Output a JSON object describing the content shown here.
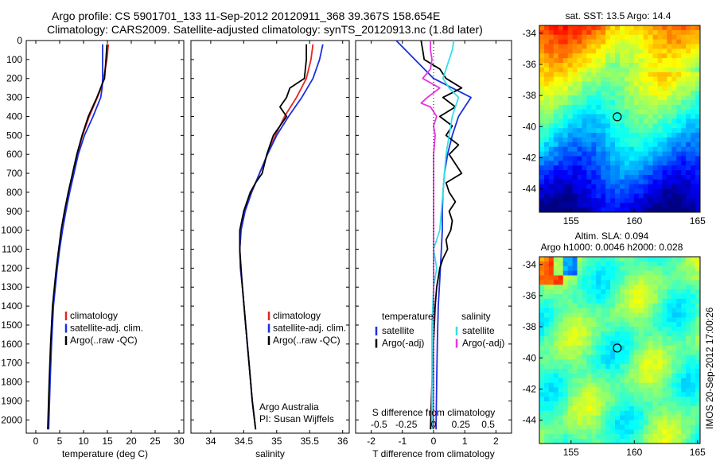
{
  "header": {
    "line1": "Argo profile: CS 5901701_133 11-Sep-2012 20120911_368 39.367S 158.654E",
    "line2": "Climatology: CARS2009. Satellite-adjusted climatology: synTS_20120913.nc (1.8d later)"
  },
  "side_stamp": "IMOS 20-Sep-2012 17:00:26",
  "colors": {
    "red": "#e8241f",
    "blue": "#1b2fe0",
    "black": "#000000",
    "cyan": "#33e0e6",
    "magenta": "#e834e0"
  },
  "depth_ticks": [
    0,
    100,
    200,
    300,
    400,
    500,
    600,
    700,
    800,
    900,
    1000,
    1100,
    1200,
    1300,
    1400,
    1500,
    1600,
    1700,
    1800,
    1900,
    2000
  ],
  "chart_data": [
    {
      "type": "line",
      "id": "temperature",
      "xlabel": "temperature (deg C)",
      "ylabel": "",
      "xlim": [
        -2,
        31
      ],
      "ylim": [
        2070,
        0
      ],
      "xticks": [
        0,
        5,
        10,
        15,
        20,
        25,
        30
      ],
      "legend": [
        "climatology",
        "satellite-adj. clim.",
        "Argo(..raw -QC)"
      ],
      "series": [
        {
          "name": "climatology",
          "color": "red",
          "depth": [
            20,
            100,
            200,
            250,
            300,
            400,
            500,
            600,
            700,
            800,
            900,
            1000,
            1100,
            1200,
            1300,
            1400,
            1600,
            1800,
            2050
          ],
          "values": [
            15.2,
            14.9,
            14.2,
            13.7,
            12.9,
            11.2,
            9.8,
            8.7,
            7.8,
            6.9,
            6.1,
            5.4,
            4.9,
            4.4,
            4.0,
            3.6,
            3.2,
            2.9,
            2.6
          ]
        },
        {
          "name": "satellite-adj. clim.",
          "color": "blue",
          "depth": [
            20,
            100,
            200,
            250,
            300,
            400,
            500,
            600,
            700,
            800,
            900,
            1000,
            1100,
            1200,
            1300,
            1400,
            1600,
            1800,
            2050
          ],
          "values": [
            14.0,
            14.0,
            14.0,
            13.9,
            13.6,
            12.0,
            10.2,
            8.9,
            8.0,
            7.1,
            6.3,
            5.6,
            5.0,
            4.5,
            4.1,
            3.7,
            3.3,
            3.0,
            2.7
          ]
        },
        {
          "name": "Argo(..raw -QC)",
          "color": "black",
          "depth": [
            20,
            100,
            200,
            230,
            300,
            400,
            500,
            600,
            700,
            800,
            900,
            1000,
            1100,
            1200,
            1300,
            1400,
            1600,
            1800,
            2050
          ],
          "values": [
            14.9,
            14.7,
            14.4,
            13.9,
            12.8,
            11.0,
            9.7,
            8.6,
            7.7,
            6.8,
            6.0,
            5.3,
            4.8,
            4.3,
            3.9,
            3.5,
            3.1,
            2.8,
            2.5
          ]
        }
      ]
    },
    {
      "type": "line",
      "id": "salinity",
      "xlabel": "salinity",
      "ylabel": "",
      "xlim": [
        33.7,
        36.1
      ],
      "ylim": [
        2070,
        0
      ],
      "xticks": [
        34,
        34.5,
        35,
        35.5,
        36
      ],
      "legend": [
        "climatology",
        "satellite-adj. clim.",
        "Argo(..raw -QC)"
      ],
      "annotation": [
        "Argo Australia",
        "PI: Susan Wijffels"
      ],
      "series": [
        {
          "name": "climatology",
          "color": "red",
          "depth": [
            20,
            100,
            200,
            300,
            400,
            500,
            600,
            700,
            800,
            900,
            1000,
            1100,
            1200,
            1300,
            1500,
            1700,
            1900,
            2050
          ],
          "values": [
            35.55,
            35.52,
            35.45,
            35.3,
            35.12,
            34.98,
            34.86,
            34.74,
            34.62,
            34.52,
            34.46,
            34.44,
            34.45,
            34.48,
            34.53,
            34.58,
            34.63,
            34.68
          ]
        },
        {
          "name": "satellite-adj. clim.",
          "color": "blue",
          "depth": [
            20,
            100,
            200,
            300,
            400,
            500,
            600,
            700,
            800,
            900,
            1000,
            1100,
            1200,
            1300,
            1500,
            1700,
            1900,
            2050
          ],
          "values": [
            35.7,
            35.65,
            35.55,
            35.38,
            35.18,
            35.0,
            34.86,
            34.74,
            34.62,
            34.52,
            34.46,
            34.44,
            34.45,
            34.48,
            34.53,
            34.58,
            34.63,
            34.68
          ]
        },
        {
          "name": "Argo(..raw -QC)",
          "color": "black",
          "depth": [
            20,
            100,
            200,
            250,
            300,
            350,
            400,
            500,
            600,
            700,
            750,
            800,
            900,
            1000,
            1100,
            1200,
            1300,
            1500,
            1700,
            1900,
            2050
          ],
          "values": [
            35.45,
            35.45,
            35.42,
            35.2,
            35.15,
            35.05,
            35.15,
            34.95,
            34.85,
            34.78,
            34.68,
            34.6,
            34.5,
            34.44,
            34.44,
            34.46,
            34.48,
            34.53,
            34.58,
            34.63,
            34.68
          ]
        }
      ]
    },
    {
      "type": "line",
      "id": "difference",
      "xlabel": "T difference from climatology",
      "xlabel_top": "S difference from climatology",
      "xlim": [
        -2.5,
        2.5
      ],
      "ylim": [
        2070,
        0
      ],
      "xticks": [
        -2,
        -1,
        0,
        1,
        2
      ],
      "top_ticks": [
        {
          "value": -1.75,
          "label": "-0.5"
        },
        {
          "value": -0.875,
          "label": "-0.25"
        },
        {
          "value": 0,
          "label": "0"
        },
        {
          "value": 0.875,
          "label": "0.25"
        },
        {
          "value": 1.75,
          "label": "0.5"
        }
      ],
      "legend_temperature": {
        "title": "temperature",
        "items": [
          "satellite",
          "Argo(-adj)"
        ]
      },
      "legend_salinity": {
        "title": "salinity",
        "items": [
          "satellite",
          "Argo(-adj)"
        ]
      },
      "series": [
        {
          "name": "satellite",
          "color": "blue",
          "group": "temperature",
          "depth": [
            0,
            50,
            100,
            150,
            200,
            250,
            300,
            350,
            400,
            500,
            600,
            700,
            800,
            900,
            1000,
            1100,
            1200,
            1400,
            1600,
            1800,
            2050
          ],
          "values": [
            -1.2,
            -0.9,
            -0.6,
            -0.3,
            0.0,
            0.6,
            1.2,
            1.0,
            0.8,
            0.6,
            0.45,
            0.35,
            0.3,
            0.28,
            0.28,
            0.25,
            0.22,
            0.15,
            0.12,
            0.1,
            0.08
          ]
        },
        {
          "name": "Argo(-adj)",
          "color": "black",
          "group": "temperature",
          "depth": [
            0,
            50,
            100,
            150,
            200,
            250,
            300,
            350,
            400,
            450,
            500,
            550,
            600,
            650,
            700,
            750,
            800,
            850,
            900,
            950,
            1000,
            1050,
            1100,
            1150,
            1200,
            1250,
            1300,
            1400,
            1600,
            1800,
            2050
          ],
          "values": [
            -0.4,
            -0.35,
            -0.3,
            0.2,
            0.4,
            0.9,
            0.3,
            0.7,
            0.2,
            0.6,
            0.4,
            0.8,
            0.5,
            0.7,
            0.9,
            0.4,
            0.5,
            0.7,
            0.5,
            0.6,
            0.55,
            0.4,
            0.45,
            0.3,
            0.2,
            0.15,
            0.1,
            0.05,
            0.0,
            -0.05,
            -0.1
          ]
        },
        {
          "name": "satellite",
          "color": "cyan",
          "group": "salinity",
          "depth": [
            0,
            50,
            100,
            150,
            200,
            250,
            300,
            350,
            400,
            500,
            600,
            700,
            800,
            900,
            1000,
            1100,
            1200,
            1300,
            1500,
            1700,
            1900,
            2050
          ],
          "values": [
            0.65,
            0.6,
            0.5,
            0.4,
            0.3,
            0.5,
            0.8,
            0.7,
            0.6,
            0.5,
            0.4,
            0.35,
            0.3,
            0.25,
            0.2,
            0.0,
            0.1,
            0.0,
            -0.05,
            -0.05,
            -0.05,
            -0.05
          ]
        },
        {
          "name": "Argo(-adj)",
          "color": "magenta",
          "group": "salinity",
          "depth": [
            0,
            50,
            100,
            150,
            200,
            250,
            300,
            330,
            350,
            400,
            450,
            500,
            600,
            800,
            1000,
            1200,
            1400,
            1600,
            1800,
            2050
          ],
          "values": [
            -0.1,
            -0.1,
            -0.05,
            -0.1,
            -0.35,
            0.2,
            -0.2,
            -0.4,
            -0.1,
            0.1,
            0.0,
            0.05,
            0.0,
            0.0,
            0.0,
            0.0,
            0.0,
            0.0,
            0.0,
            0.0
          ]
        }
      ]
    },
    {
      "type": "heatmap",
      "id": "sst_map",
      "title": "sat. SST: 13.5 Argo: 14.4",
      "xlim": [
        152.5,
        165.2
      ],
      "ylim": [
        -45.5,
        -33.5
      ],
      "xticks": [
        155,
        160,
        165
      ],
      "yticks": [
        -34,
        -36,
        -38,
        -40,
        -42,
        -44
      ],
      "marker": {
        "lon": 158.654,
        "lat": -39.367
      }
    },
    {
      "type": "heatmap",
      "id": "sla_map",
      "title": [
        "Altim. SLA: 0.094",
        "Argo h1000: 0.0046 h2000: 0.028"
      ],
      "xlim": [
        152.5,
        165.2
      ],
      "ylim": [
        -45.5,
        -33.5
      ],
      "xticks": [
        155,
        160,
        165
      ],
      "yticks": [
        -34,
        -36,
        -38,
        -40,
        -42,
        -44
      ],
      "marker": {
        "lon": 158.654,
        "lat": -39.367
      }
    }
  ]
}
